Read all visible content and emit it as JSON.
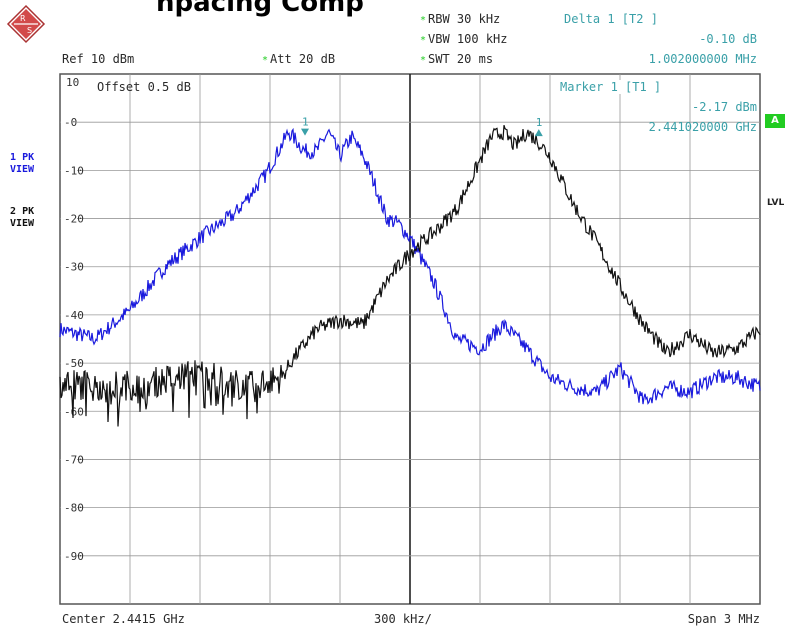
{
  "title_fragment": "npacing Comp",
  "settings": {
    "ref": "Ref  10 dBm",
    "att": "Att  20 dB",
    "rbw": "RBW 30 kHz",
    "vbw": "VBW 100 kHz",
    "swt": "SWT 20 ms",
    "offset": "Offset  0.5 dB"
  },
  "delta_marker": {
    "label": "Delta 1 [T2 ]",
    "value": "-0.10 dB",
    "freq": "1.002000000 MHz"
  },
  "marker1": {
    "label": "Marker 1 [T1 ]",
    "value": "-2.17 dBm",
    "freq": "2.441020000 GHz"
  },
  "traces": [
    {
      "id": "1",
      "mode": "PK",
      "view": "VIEW",
      "color": "#1a1add"
    },
    {
      "id": "2",
      "mode": "PK",
      "view": "VIEW",
      "color": "#111111"
    }
  ],
  "badges": {
    "a": "A",
    "lvl": "LVL"
  },
  "footer": {
    "center": "Center 2.4415 GHz",
    "per_div": "300 kHz/",
    "span": "Span 3 MHz"
  },
  "marker_labels": [
    "1",
    "1"
  ],
  "chart_data": {
    "type": "line",
    "x_unit": "MHz offset from center",
    "xlim": [
      -1.5,
      1.5
    ],
    "ylim": [
      -100,
      10
    ],
    "y_ticks": [
      0,
      -10,
      -20,
      -30,
      -40,
      -50,
      -60,
      -70,
      -80,
      -90
    ],
    "y_tick_labels": [
      "0",
      "10",
      "20",
      "30",
      "40",
      "50",
      "60",
      "70",
      "80",
      "90"
    ],
    "top_label": "10",
    "grid": true,
    "series": [
      {
        "name": "1 PK VIEW",
        "color": "#1a1add",
        "x": [
          -1.5,
          -1.35,
          -1.2,
          -1.05,
          -0.9,
          -0.75,
          -0.62,
          -0.52,
          -0.45,
          -0.4,
          -0.35,
          -0.3,
          -0.25,
          -0.2,
          -0.15,
          -0.1,
          -0.05,
          0.0,
          0.1,
          0.2,
          0.3,
          0.4,
          0.5,
          0.6,
          0.7,
          0.8,
          0.9,
          1.0,
          1.1,
          1.2,
          1.3,
          1.4,
          1.5
        ],
        "values": [
          -43,
          -45,
          -39,
          -30,
          -24,
          -19,
          -11,
          -2,
          -6,
          -6,
          -2,
          -7,
          -3,
          -7,
          -13,
          -20,
          -21,
          -24,
          -33,
          -45,
          -47,
          -42,
          -47,
          -53,
          -55,
          -56,
          -51,
          -58,
          -55,
          -56,
          -53,
          -53,
          -55
        ]
      },
      {
        "name": "2 PK VIEW",
        "color": "#111111",
        "x": [
          -1.5,
          -1.3,
          -1.1,
          -0.9,
          -0.7,
          -0.55,
          -0.5,
          -0.4,
          -0.3,
          -0.2,
          -0.1,
          0.0,
          0.1,
          0.2,
          0.3,
          0.35,
          0.4,
          0.45,
          0.5,
          0.55,
          0.6,
          0.7,
          0.8,
          0.9,
          1.0,
          1.1,
          1.2,
          1.3,
          1.4,
          1.5
        ],
        "values": [
          -54,
          -55,
          -54,
          -52,
          -55,
          -53,
          -49,
          -43,
          -41,
          -42,
          -33,
          -27,
          -23,
          -18,
          -8,
          -3,
          -2,
          -5,
          -2,
          -4,
          -7,
          -17,
          -25,
          -34,
          -42,
          -48,
          -44,
          -48,
          -47,
          -43
        ]
      }
    ],
    "markers": [
      {
        "x": -0.45,
        "y": -2.17,
        "label": "1",
        "color": "#3aa0a8",
        "shape": "down"
      },
      {
        "x": 0.552,
        "y": -2.27,
        "label": "1",
        "color": "#3aa0a8",
        "shape": "up"
      }
    ]
  }
}
